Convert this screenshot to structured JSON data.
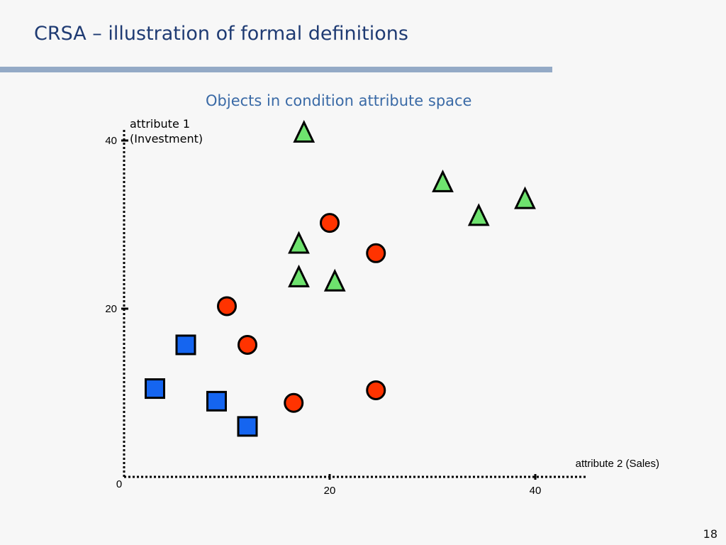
{
  "slide": {
    "title": "CRSA – illustration of formal definitions",
    "page_number": "18"
  },
  "chart_data": {
    "type": "scatter",
    "title": "Objects in condition attribute space",
    "ylabel_line1": "attribute 1",
    "ylabel_line2": "(Investment)",
    "xlabel": "attribute 2 (Sales)",
    "xlim": [
      0,
      45
    ],
    "ylim": [
      0,
      41
    ],
    "xticks": [
      20,
      40
    ],
    "yticks": [
      20,
      40
    ],
    "origin_label": "0",
    "grid": false,
    "series": [
      {
        "marker": "square",
        "color": "#1565f0",
        "points": [
          [
            3,
            10.5
          ],
          [
            6,
            15.7
          ],
          [
            9,
            9
          ],
          [
            12,
            6
          ]
        ]
      },
      {
        "marker": "circle",
        "color": "#ff3300",
        "points": [
          [
            10,
            20.3
          ],
          [
            20,
            30.2
          ],
          [
            24.5,
            26.6
          ],
          [
            12,
            15.7
          ],
          [
            16.5,
            8.8
          ],
          [
            24.5,
            10.3
          ]
        ]
      },
      {
        "marker": "triangle",
        "color": "#6ee26e",
        "points": [
          [
            17.5,
            40.8
          ],
          [
            31,
            34.9
          ],
          [
            34.5,
            30.9
          ],
          [
            39,
            32.9
          ],
          [
            17,
            27.6
          ],
          [
            17,
            23.6
          ],
          [
            20.5,
            23.1
          ]
        ]
      }
    ]
  }
}
